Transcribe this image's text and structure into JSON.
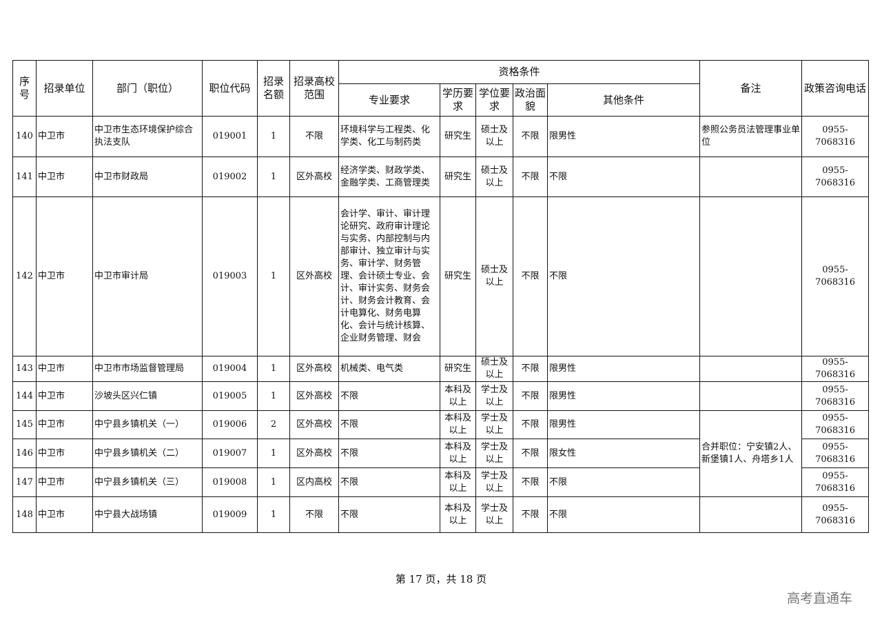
{
  "header": {
    "seq": "序号",
    "unit": "招录单位",
    "dept": "部门（职位）",
    "code": "职位代码",
    "quota": "招录名额",
    "school": "招录高校范围",
    "qual": "资格条件",
    "major": "专业要求",
    "edu": "学历要求",
    "degree": "学位要求",
    "politics": "政治面貌",
    "other": "其他条件",
    "remark": "备注",
    "phone": "政策咨询电话"
  },
  "rows": [
    {
      "seq": "140",
      "unit": "中卫市",
      "dept": "中卫市生态环境保护综合执法支队",
      "code": "019001",
      "quota": "1",
      "school": "不限",
      "major": "环境科学与工程类、化学类、化工与制药类",
      "edu": "研究生",
      "degree": "硕士及以上",
      "politics": "不限",
      "other": "限男性",
      "remark": "参照公务员法管理事业单位",
      "phone": "0955-7068316"
    },
    {
      "seq": "141",
      "unit": "中卫市",
      "dept": "中卫市财政局",
      "code": "019002",
      "quota": "1",
      "school": "区外高校",
      "major": "经济学类、财政学类、金融学类、工商管理类",
      "edu": "研究生",
      "degree": "硕士及以上",
      "politics": "不限",
      "other": "不限",
      "remark": "",
      "phone": "0955-7068316"
    },
    {
      "seq": "142",
      "unit": "中卫市",
      "dept": "中卫市审计局",
      "code": "019003",
      "quota": "1",
      "school": "区外高校",
      "major": "会计学、审计、审计理论研究、政府审计理论与实务、内部控制与内部审计、独立审计与实务、审计学、财务管理、会计硕士专业、会计、审计实务、财务会计、财务会计教育、会计电算化、财务电算化、会计与统计核算、企业财务管理、财会",
      "edu": "研究生",
      "degree": "硕士及以上",
      "politics": "不限",
      "other": "不限",
      "remark": "",
      "phone": "0955-7068316"
    },
    {
      "seq": "143",
      "unit": "中卫市",
      "dept": "中卫市市场监督管理局",
      "code": "019004",
      "quota": "1",
      "school": "区外高校",
      "major": "机械类、电气类",
      "edu": "研究生",
      "degree": "硕士及以上",
      "politics": "不限",
      "other": "限男性",
      "remark": "",
      "phone": "0955-7068316"
    },
    {
      "seq": "144",
      "unit": "中卫市",
      "dept": "沙坡头区兴仁镇",
      "code": "019005",
      "quota": "1",
      "school": "区外高校",
      "major": "不限",
      "edu": "本科及以上",
      "degree": "学士及以上",
      "politics": "不限",
      "other": "限男性",
      "remark": "",
      "phone": "0955-7068316"
    },
    {
      "seq": "145",
      "unit": "中卫市",
      "dept": "中宁县乡镇机关（一）",
      "code": "019006",
      "quota": "2",
      "school": "区外高校",
      "major": "不限",
      "edu": "本科及以上",
      "degree": "学士及以上",
      "politics": "不限",
      "other": "限男性",
      "remark": "合并职位：宁安镇2人、新堡镇1人、舟塔乡1人",
      "phone": "0955-7068316"
    },
    {
      "seq": "146",
      "unit": "中卫市",
      "dept": "中宁县乡镇机关（二）",
      "code": "019007",
      "quota": "1",
      "school": "区外高校",
      "major": "不限",
      "edu": "本科及以上",
      "degree": "学士及以上",
      "politics": "不限",
      "other": "限女性",
      "phone": "0955-7068316"
    },
    {
      "seq": "147",
      "unit": "中卫市",
      "dept": "中宁县乡镇机关（三）",
      "code": "019008",
      "quota": "1",
      "school": "区内高校",
      "major": "不限",
      "edu": "本科及以上",
      "degree": "学士及以上",
      "politics": "不限",
      "other": "不限",
      "phone": "0955-7068316"
    },
    {
      "seq": "148",
      "unit": "中卫市",
      "dept": "中宁县大战场镇",
      "code": "019009",
      "quota": "1",
      "school": "不限",
      "major": "不限",
      "edu": "本科及以上",
      "degree": "学士及以上",
      "politics": "不限",
      "other": "不限",
      "remark": "",
      "phone": "0955-7068316"
    }
  ],
  "footer": "第 17 页，共 18 页",
  "watermark": "高考直通车"
}
